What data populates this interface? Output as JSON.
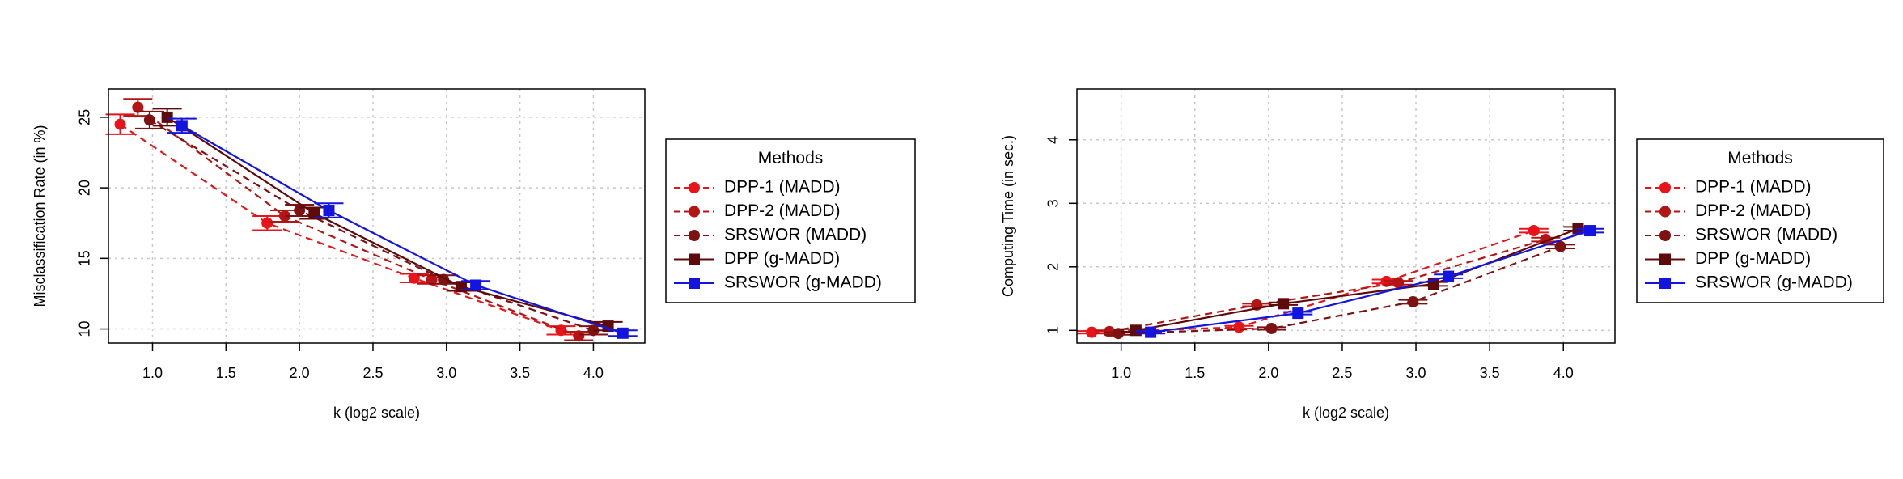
{
  "chart_data": [
    {
      "type": "line",
      "title": "",
      "xlabel": "k (log2 scale)",
      "ylabel": "Misclassification Rate (in %)",
      "xlim": [
        0.7,
        4.35
      ],
      "ylim": [
        9,
        27
      ],
      "x_ticks": [
        "1.0",
        "1.5",
        "2.0",
        "2.5",
        "3.0",
        "3.5",
        "4.0"
      ],
      "y_ticks": [
        "10",
        "15",
        "20",
        "25"
      ],
      "grid": true,
      "legend": {
        "title": "Methods",
        "position": "right"
      },
      "series": [
        {
          "name": "DPP-1 (MADD)",
          "color": "#e8141a",
          "marker": "circle",
          "dash": true,
          "x": [
            0.78,
            1.78,
            2.78,
            3.78
          ],
          "y": [
            24.5,
            17.5,
            13.6,
            9.9
          ],
          "err": [
            0.7,
            0.5,
            0.3,
            0.3
          ]
        },
        {
          "name": "DPP-2 (MADD)",
          "color": "#b51414",
          "marker": "circle",
          "dash": true,
          "x": [
            0.9,
            1.9,
            2.9,
            3.9
          ],
          "y": [
            25.7,
            18.0,
            13.5,
            9.5
          ],
          "err": [
            0.6,
            0.4,
            0.3,
            0.3
          ]
        },
        {
          "name": "SRSWOR (MADD)",
          "color": "#7e1212",
          "marker": "circle",
          "dash": true,
          "x": [
            0.98,
            2.0,
            2.98,
            4.0
          ],
          "y": [
            24.8,
            18.4,
            13.5,
            9.9
          ],
          "err": [
            0.6,
            0.4,
            0.3,
            0.3
          ]
        },
        {
          "name": "DPP (g-MADD)",
          "color": "#5e0a0a",
          "marker": "square",
          "dash": false,
          "x": [
            1.1,
            2.1,
            3.1,
            4.1
          ],
          "y": [
            25.0,
            18.2,
            13.0,
            10.2
          ],
          "err": [
            0.6,
            0.4,
            0.3,
            0.3
          ]
        },
        {
          "name": "SRSWOR (g-MADD)",
          "color": "#1414e0",
          "marker": "square",
          "dash": false,
          "x": [
            1.2,
            2.2,
            3.2,
            4.2
          ],
          "y": [
            24.4,
            18.4,
            13.1,
            9.7
          ],
          "err": [
            0.5,
            0.5,
            0.3,
            0.2
          ]
        }
      ]
    },
    {
      "type": "line",
      "title": "",
      "xlabel": "k (log2 scale)",
      "ylabel": "Computing Time (in sec.)",
      "xlim": [
        0.7,
        4.35
      ],
      "ylim": [
        0.8,
        4.8
      ],
      "x_ticks": [
        "1.0",
        "1.5",
        "2.0",
        "2.5",
        "3.0",
        "3.5",
        "4.0"
      ],
      "y_ticks": [
        "1",
        "2",
        "3",
        "4"
      ],
      "grid": true,
      "legend": {
        "title": "Methods",
        "position": "right"
      },
      "series": [
        {
          "name": "DPP-1 (MADD)",
          "color": "#e8141a",
          "marker": "circle",
          "dash": true,
          "x": [
            0.8,
            1.8,
            2.8,
            3.8
          ],
          "y": [
            0.97,
            1.05,
            1.77,
            2.57
          ],
          "err": [
            0.02,
            0.02,
            0.03,
            0.03
          ]
        },
        {
          "name": "DPP-2 (MADD)",
          "color": "#b51414",
          "marker": "circle",
          "dash": true,
          "x": [
            0.92,
            1.92,
            2.88,
            3.88
          ],
          "y": [
            0.98,
            1.4,
            1.75,
            2.43
          ],
          "err": [
            0.02,
            0.02,
            0.03,
            0.03
          ]
        },
        {
          "name": "SRSWOR (MADD)",
          "color": "#7e1212",
          "marker": "circle",
          "dash": true,
          "x": [
            0.98,
            2.02,
            2.98,
            3.98
          ],
          "y": [
            0.95,
            1.03,
            1.45,
            2.32
          ],
          "err": [
            0.02,
            0.02,
            0.03,
            0.03
          ]
        },
        {
          "name": "DPP (g-MADD)",
          "color": "#5e0a0a",
          "marker": "square",
          "dash": false,
          "x": [
            1.1,
            2.1,
            3.12,
            4.1
          ],
          "y": [
            1.0,
            1.42,
            1.73,
            2.6
          ],
          "err": [
            0.02,
            0.02,
            0.03,
            0.03
          ]
        },
        {
          "name": "SRSWOR (g-MADD)",
          "color": "#1414e0",
          "marker": "square",
          "dash": false,
          "x": [
            1.2,
            2.2,
            3.22,
            4.18
          ],
          "y": [
            0.97,
            1.27,
            1.85,
            2.57
          ],
          "err": [
            0.02,
            0.02,
            0.03,
            0.03
          ]
        }
      ]
    }
  ]
}
